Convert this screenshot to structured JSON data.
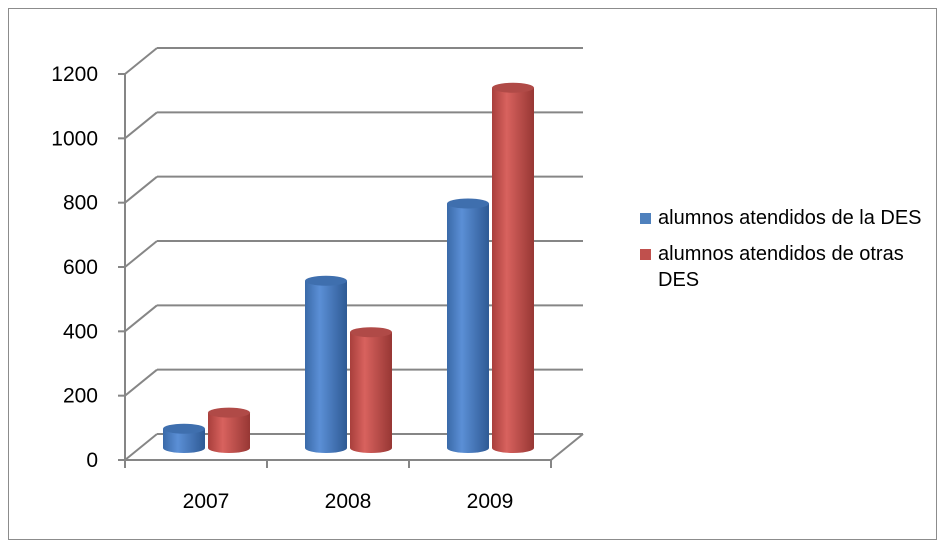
{
  "chart_data": {
    "type": "bar",
    "title": "",
    "xlabel": "",
    "ylabel": "",
    "categories": [
      "2007",
      "2008",
      "2009"
    ],
    "series": [
      {
        "name": "alumnos atendidos de la DES",
        "values": [
          60,
          520,
          760
        ],
        "color": "#4f81bd"
      },
      {
        "name": "alumnos  atendidos de otras DES",
        "values": [
          110,
          360,
          1120
        ],
        "color": "#c0504d"
      }
    ],
    "ylim": [
      0,
      1200
    ],
    "yticks": [
      0,
      200,
      400,
      600,
      800,
      1000,
      1200
    ],
    "grid": true,
    "three_d": true,
    "bar_shape": "cylinder",
    "legend_position": "right"
  }
}
